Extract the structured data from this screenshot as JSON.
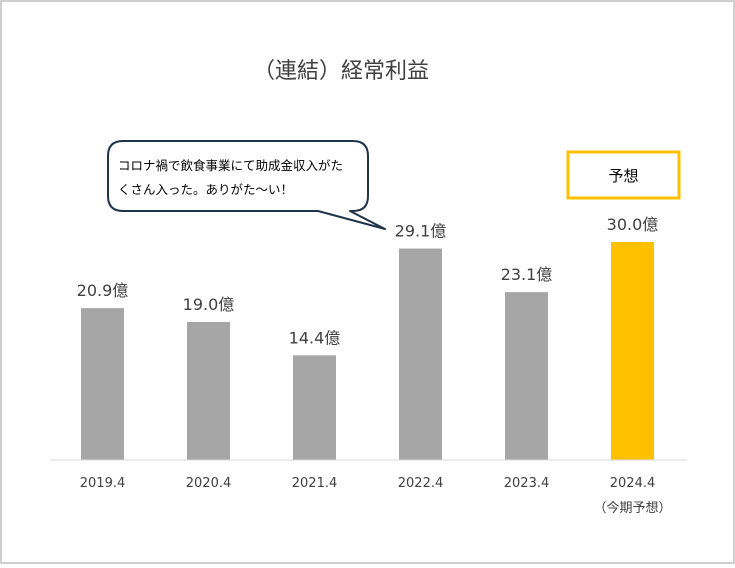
{
  "chart_data": {
    "type": "bar",
    "title": "（連結）経常利益",
    "categories": [
      "2019.4",
      "2020.4",
      "2021.4",
      "2022.4",
      "2023.4",
      "2024.4"
    ],
    "category_notes": [
      "",
      "",
      "",
      "",
      "",
      "（今期予想）"
    ],
    "values": [
      20.9,
      19.0,
      14.4,
      29.1,
      23.1,
      30.0
    ],
    "value_labels": [
      "20.9億",
      "19.0億",
      "14.4億",
      "29.1億",
      "23.1億",
      "30.0億"
    ],
    "unit": "億",
    "bar_colors": [
      "#a6a6a6",
      "#a6a6a6",
      "#a6a6a6",
      "#a6a6a6",
      "#a6a6a6",
      "#ffc000"
    ],
    "ylim": [
      0,
      30
    ],
    "grid": false,
    "xlabel": "",
    "ylabel": "",
    "forecast_badge": "予想",
    "callout": {
      "lines": [
        "コロナ禍で飲食事業にて助成金収入がた",
        "くさん入った。ありがた～い！"
      ]
    }
  },
  "colors": {
    "frame": "#bfbfbf",
    "text": "#404040",
    "axis": "#d9d9d9",
    "badge_border": "#ffc000",
    "callout_border": "#1f3349"
  }
}
